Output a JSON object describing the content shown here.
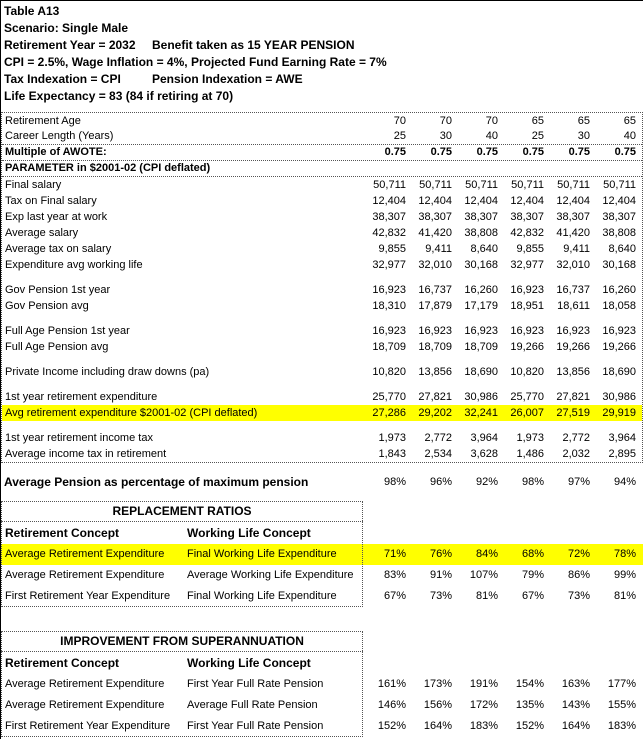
{
  "colors": {
    "highlight": "#ffff00"
  },
  "header": {
    "title": "Table A13",
    "scenario": "Scenario: Single Male",
    "retirement_year": "Retirement Year = 2032",
    "benefit": "Benefit taken as 15 YEAR PENSION",
    "assumptions": "CPI = 2.5%, Wage Inflation = 4%, Projected Fund Earning Rate = 7%",
    "tax_indexation": "Tax Indexation = CPI",
    "pension_indexation": "Pension Indexation = AWE",
    "life_expectancy": "Life Expectancy = 83 (84 if retiring at 70)"
  },
  "main_table": {
    "rows": [
      {
        "label": "Retirement Age",
        "values": [
          "70",
          "70",
          "70",
          "65",
          "65",
          "65"
        ]
      },
      {
        "label": "Career Length (Years)",
        "values": [
          "25",
          "30",
          "40",
          "25",
          "30",
          "40"
        ],
        "divider": true
      },
      {
        "label": "Multiple of AWOTE:",
        "values": [
          "0.75",
          "0.75",
          "0.75",
          "0.75",
          "0.75",
          "0.75"
        ],
        "bold": true,
        "divider": true
      },
      {
        "label": "PARAMETER in $2001-02 (CPI deflated)",
        "values": [
          "",
          "",
          "",
          "",
          "",
          ""
        ],
        "bold": true,
        "divider": true
      },
      {
        "label": "Final salary",
        "values": [
          "50,711",
          "50,711",
          "50,711",
          "50,711",
          "50,711",
          "50,711"
        ]
      },
      {
        "label": "Tax on Final salary",
        "values": [
          "12,404",
          "12,404",
          "12,404",
          "12,404",
          "12,404",
          "12,404"
        ]
      },
      {
        "label": "Exp last year at work",
        "values": [
          "38,307",
          "38,307",
          "38,307",
          "38,307",
          "38,307",
          "38,307"
        ]
      },
      {
        "label": "Average salary",
        "values": [
          "42,832",
          "41,420",
          "38,808",
          "42,832",
          "41,420",
          "38,808"
        ]
      },
      {
        "label": "Average tax on salary",
        "values": [
          "9,855",
          "9,411",
          "8,640",
          "9,855",
          "9,411",
          "8,640"
        ]
      },
      {
        "label": "Expenditure avg working life",
        "values": [
          "32,977",
          "32,010",
          "30,168",
          "32,977",
          "32,010",
          "30,168"
        ]
      },
      {
        "spacer": true
      },
      {
        "label": "Gov Pension 1st year",
        "values": [
          "16,923",
          "16,737",
          "16,260",
          "16,923",
          "16,737",
          "16,260"
        ]
      },
      {
        "label": "Gov Pension avg",
        "values": [
          "18,310",
          "17,879",
          "17,179",
          "18,951",
          "18,611",
          "18,058"
        ]
      },
      {
        "spacer": true
      },
      {
        "label": "Full Age Pension 1st year",
        "values": [
          "16,923",
          "16,923",
          "16,923",
          "16,923",
          "16,923",
          "16,923"
        ]
      },
      {
        "label": "Full Age Pension avg",
        "values": [
          "18,709",
          "18,709",
          "18,709",
          "19,266",
          "19,266",
          "19,266"
        ]
      },
      {
        "spacer": true
      },
      {
        "label": "Private Income including draw downs (pa)",
        "values": [
          "10,820",
          "13,856",
          "18,690",
          "10,820",
          "13,856",
          "18,690"
        ]
      },
      {
        "spacer": true
      },
      {
        "label": "1st year retirement expenditure",
        "values": [
          "25,770",
          "27,821",
          "30,986",
          "25,770",
          "27,821",
          "30,986"
        ]
      },
      {
        "label": "Avg retirement expenditure $2001-02 (CPI deflated)",
        "values": [
          "27,286",
          "29,202",
          "32,241",
          "26,007",
          "27,519",
          "29,919"
        ],
        "highlight": true
      },
      {
        "spacer": true
      },
      {
        "label": "1st year retirement income tax",
        "values": [
          "1,973",
          "2,772",
          "3,964",
          "1,973",
          "2,772",
          "3,964"
        ]
      },
      {
        "label": "Average income tax in retirement",
        "values": [
          "1,843",
          "2,534",
          "3,628",
          "1,486",
          "2,032",
          "2,895"
        ]
      }
    ]
  },
  "pension_summary": {
    "label": "Average Pension as percentage of  maximum pension",
    "values": [
      "98%",
      "96%",
      "92%",
      "98%",
      "97%",
      "94%"
    ]
  },
  "replacement_ratios": {
    "title": "REPLACEMENT RATIOS",
    "col1_header": "Retirement Concept",
    "col2_header": "Working Life Concept",
    "rows": [
      {
        "concept": "Average Retirement Expenditure",
        "working_life": "Final Working Life Expenditure",
        "values": [
          "71%",
          "76%",
          "84%",
          "68%",
          "72%",
          "78%"
        ],
        "highlight": true
      },
      {
        "concept": "Average Retirement Expenditure",
        "working_life": "Average Working Life Expenditure",
        "values": [
          "83%",
          "91%",
          "107%",
          "79%",
          "86%",
          "99%"
        ]
      },
      {
        "concept": "First Retirement Year Expenditure",
        "working_life": "Final Working Life Expenditure",
        "values": [
          "67%",
          "73%",
          "81%",
          "67%",
          "73%",
          "81%"
        ]
      }
    ]
  },
  "improvement": {
    "title": "IMPROVEMENT FROM SUPERANNUATION",
    "col1_header": "Retirement Concept",
    "col2_header": "Working Life Concept",
    "rows": [
      {
        "concept": "Average Retirement Expenditure",
        "working_life": "First Year Full Rate Pension",
        "values": [
          "161%",
          "173%",
          "191%",
          "154%",
          "163%",
          "177%"
        ]
      },
      {
        "concept": "Average Retirement Expenditure",
        "working_life": "Average Full Rate Pension",
        "values": [
          "146%",
          "156%",
          "172%",
          "135%",
          "143%",
          "155%"
        ]
      },
      {
        "concept": "First Retirement Year Expenditure",
        "working_life": "First Year Full Rate Pension",
        "values": [
          "152%",
          "164%",
          "183%",
          "152%",
          "164%",
          "183%"
        ]
      }
    ]
  }
}
